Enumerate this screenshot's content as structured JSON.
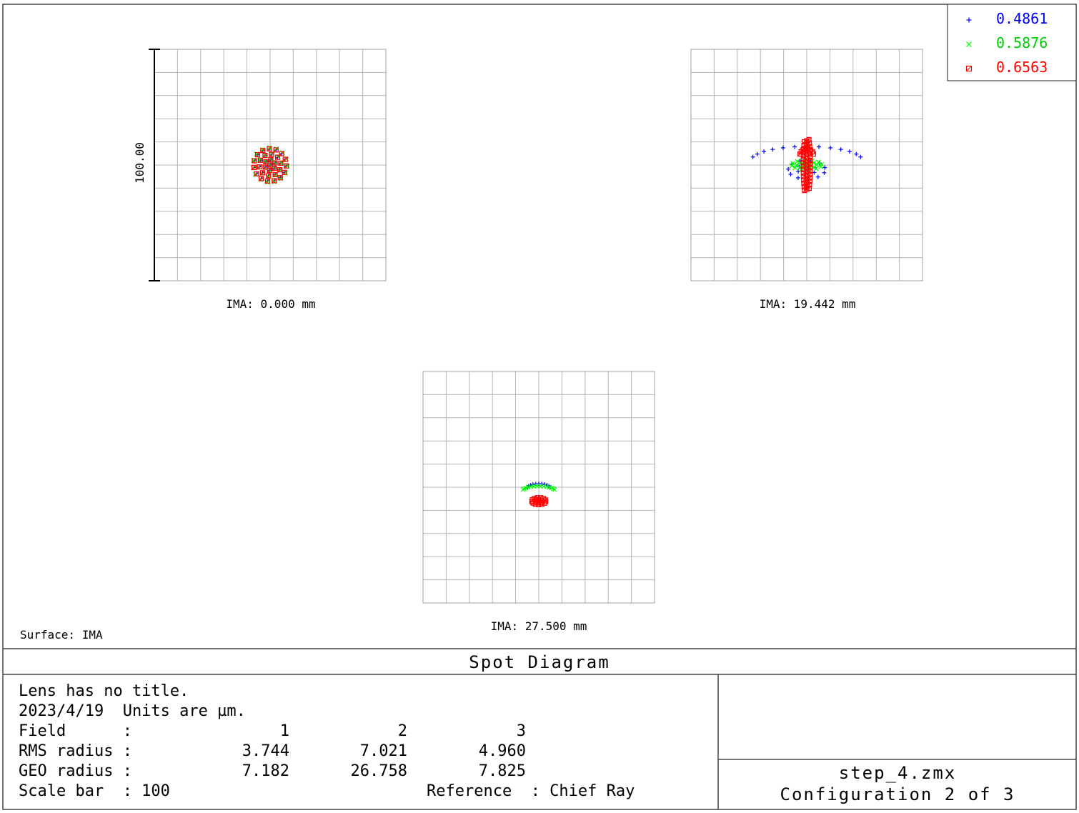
{
  "chart_data": {
    "type": "scatter",
    "title": "Spot Diagram",
    "legend": {
      "placement": "top-right",
      "entries": [
        {
          "label": "0.4861",
          "marker": "plus",
          "color": "#0000ff"
        },
        {
          "label": "0.5876",
          "marker": "cross",
          "color": "#00ff00"
        },
        {
          "label": "0.6563",
          "marker": "square",
          "color": "#ff0000"
        }
      ]
    },
    "scale_bar_label": "100.00",
    "surface_label": "Surface: IMA",
    "grid": true,
    "grid_divisions": 10,
    "plot_range_um": [
      -50,
      50
    ],
    "fields": [
      {
        "label": "IMA: 0.000 mm",
        "series": [
          {
            "name": "0.4861",
            "shape": "disk",
            "cx": 0,
            "cy": 0,
            "rx": 7,
            "ry": 7,
            "n": 28
          },
          {
            "name": "0.5876",
            "shape": "disk",
            "cx": 0,
            "cy": 0,
            "rx": 7.5,
            "ry": 7.5,
            "n": 28
          },
          {
            "name": "0.6563",
            "shape": "disk",
            "cx": 0,
            "cy": 0,
            "rx": 7,
            "ry": 7,
            "n": 28
          }
        ]
      },
      {
        "label": "IMA: 19.442 mm",
        "series": [
          {
            "name": "0.4861",
            "shape": "arc",
            "cx": 0,
            "cy": 8,
            "rx": 24,
            "ry": 6,
            "n": 13
          },
          {
            "name": "0.4861",
            "shape": "disk",
            "cx": 0,
            "cy": -2,
            "rx": 8,
            "ry": 4,
            "n": 14
          },
          {
            "name": "0.5876",
            "shape": "disk",
            "cx": 0,
            "cy": 0,
            "rx": 6.5,
            "ry": 2,
            "n": 22
          },
          {
            "name": "0.6563",
            "shape": "stem",
            "cx": 0,
            "cy": 0,
            "rx": 2.5,
            "ry": 11,
            "n": 45
          },
          {
            "name": "0.6563",
            "shape": "arc",
            "cx": 0,
            "cy": 7,
            "rx": 3,
            "ry": 3,
            "n": 8
          }
        ]
      },
      {
        "label": "IMA: 27.500 mm",
        "series": [
          {
            "name": "0.4861",
            "shape": "arc",
            "cx": 0,
            "cy": 1.5,
            "rx": 5,
            "ry": 2,
            "n": 11
          },
          {
            "name": "0.5876",
            "shape": "arc",
            "cx": 0,
            "cy": 0.5,
            "rx": 7,
            "ry": 2,
            "n": 14
          },
          {
            "name": "0.6563",
            "shape": "disk",
            "cx": 0,
            "cy": -6,
            "rx": 3,
            "ry": 1.5,
            "n": 16
          }
        ]
      }
    ]
  },
  "footer": {
    "title": "Spot Diagram",
    "lines": [
      "Lens has no title.",
      "2023/4/19  Units are µm."
    ],
    "table": {
      "field_label": "Field      :",
      "field_values": [
        "1",
        "2",
        "3"
      ],
      "rms_label": "RMS radius :",
      "rms_values": [
        "3.744",
        "7.021",
        "4.960"
      ],
      "geo_label": "GEO radius :",
      "geo_values": [
        "7.182",
        "26.758",
        "7.825"
      ],
      "scale_label": "Scale bar  : 100",
      "reference_label": "Reference  : Chief Ray"
    },
    "file_name": "step_4.zmx",
    "configuration": "Configuration 2 of 3"
  }
}
